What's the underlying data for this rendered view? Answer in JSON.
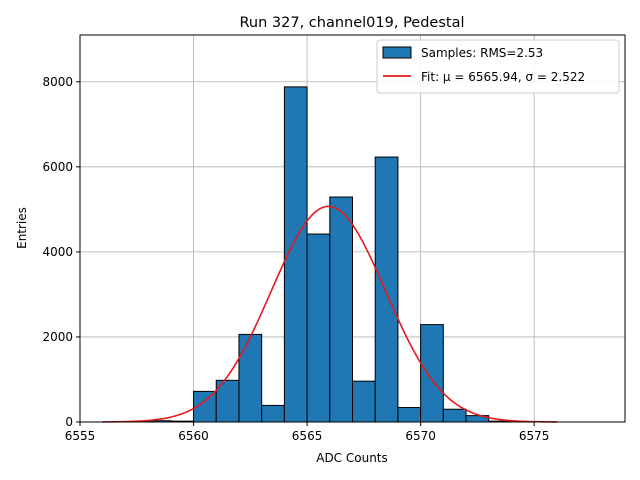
{
  "chart_data": {
    "type": "bar",
    "title": "Run 327, channel019, Pedestal",
    "xlabel": "ADC Counts",
    "ylabel": "Entries",
    "xlim": [
      6555,
      6579
    ],
    "ylim": [
      0,
      9100
    ],
    "xticks": [
      6555,
      6560,
      6565,
      6570,
      6575
    ],
    "yticks": [
      0,
      2000,
      4000,
      6000,
      8000
    ],
    "grid": true,
    "legend_position": "top-right",
    "bin_width": 1,
    "bins": [
      {
        "left": 6556,
        "value": 5
      },
      {
        "left": 6557,
        "value": 10
      },
      {
        "left": 6558,
        "value": 30
      },
      {
        "left": 6559,
        "value": 20
      },
      {
        "left": 6560,
        "value": 720
      },
      {
        "left": 6561,
        "value": 980
      },
      {
        "left": 6562,
        "value": 2060
      },
      {
        "left": 6563,
        "value": 390
      },
      {
        "left": 6564,
        "value": 7880
      },
      {
        "left": 6565,
        "value": 4420
      },
      {
        "left": 6566,
        "value": 5290
      },
      {
        "left": 6567,
        "value": 960
      },
      {
        "left": 6568,
        "value": 6230
      },
      {
        "left": 6569,
        "value": 340
      },
      {
        "left": 6570,
        "value": 2290
      },
      {
        "left": 6571,
        "value": 300
      },
      {
        "left": 6572,
        "value": 150
      },
      {
        "left": 6573,
        "value": 20
      },
      {
        "left": 6574,
        "value": 8
      },
      {
        "left": 6575,
        "value": 3
      }
    ],
    "hist_color": "#1f77b4",
    "fit": {
      "mu": 6565.94,
      "sigma": 2.522,
      "amplitude": 5070,
      "x_range": [
        6556,
        6576
      ],
      "color": "#e41a1c"
    },
    "legend": [
      {
        "label": "Samples: RMS=2.53",
        "kind": "patch",
        "color": "#1f77b4"
      },
      {
        "label": "Fit: μ = 6565.94, σ = 2.522",
        "kind": "line",
        "color": "#e41a1c"
      }
    ]
  }
}
